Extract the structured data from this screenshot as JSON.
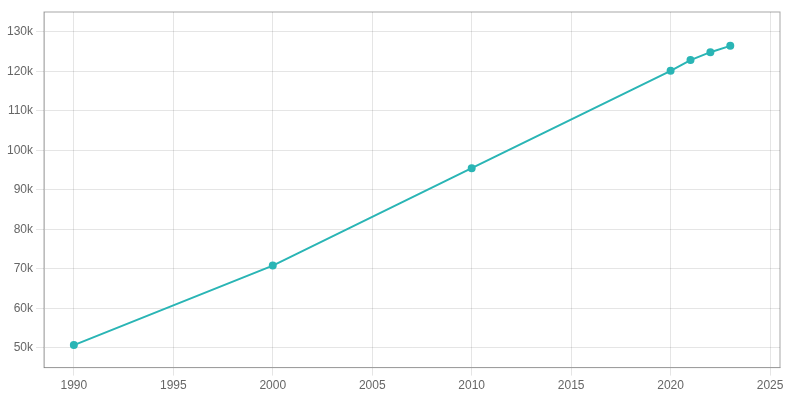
{
  "chart_data": {
    "type": "line",
    "x": [
      1990,
      2000,
      2010,
      2020,
      2021,
      2022,
      2023
    ],
    "values": [
      50695,
      70812,
      95476,
      120124,
      122828,
      124830,
      126427
    ],
    "color": "#2ab5b5",
    "marker": "circle",
    "xlim": [
      1988.5,
      2025.5
    ],
    "xticks": [
      1990,
      1995,
      2000,
      2005,
      2010,
      2015,
      2020,
      2025
    ],
    "ylim": [
      45000,
      135000
    ],
    "yticks": [
      {
        "value": 50000,
        "label": "50k"
      },
      {
        "value": 60000,
        "label": "60k"
      },
      {
        "value": 70000,
        "label": "70k"
      },
      {
        "value": 80000,
        "label": "80k"
      },
      {
        "value": 90000,
        "label": "90k"
      },
      {
        "value": 100000,
        "label": "100k"
      },
      {
        "value": 110000,
        "label": "110k"
      },
      {
        "value": 120000,
        "label": "120k"
      },
      {
        "value": 130000,
        "label": "130k"
      }
    ],
    "grid": true
  }
}
